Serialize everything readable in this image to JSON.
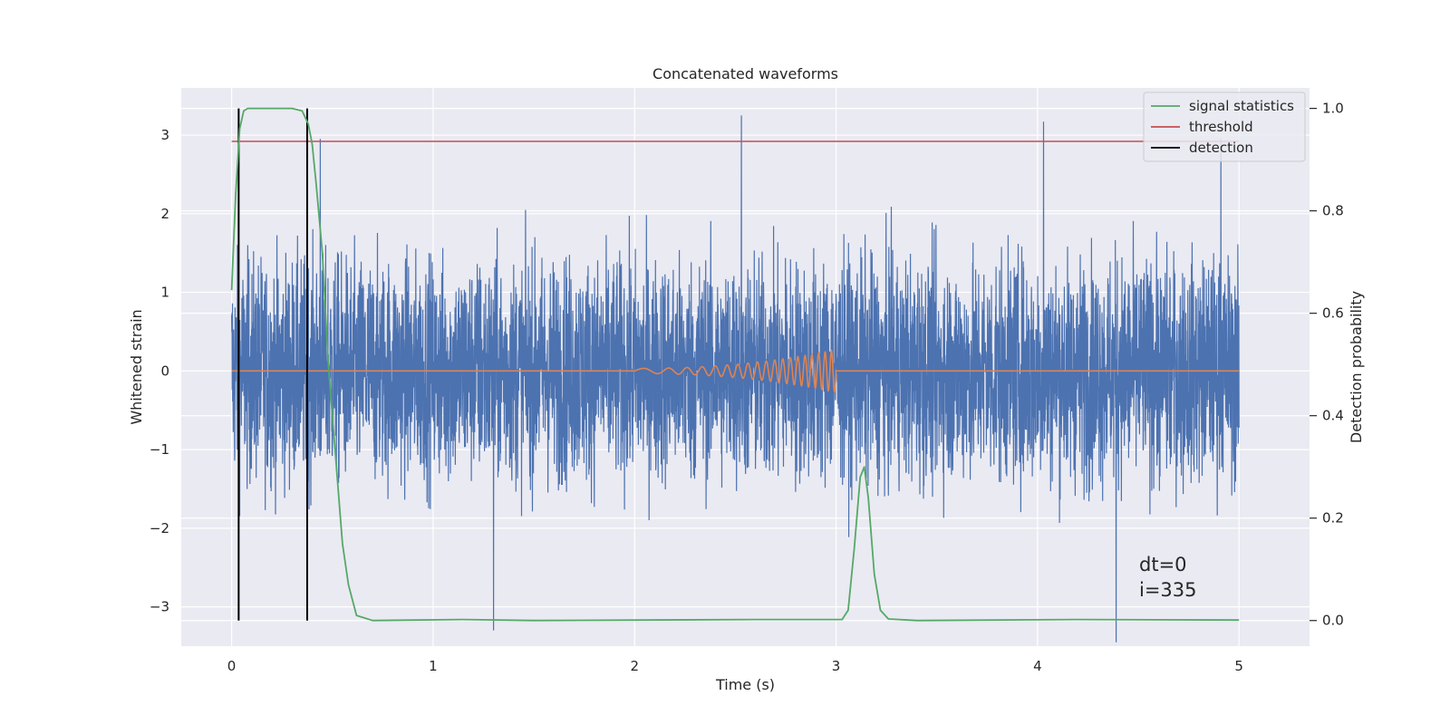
{
  "chart_data": {
    "type": "line",
    "title": "Concatenated waveforms",
    "xlabel": "Time (s)",
    "ylabel_left": "Whitened strain",
    "ylabel_right": "Detection probability",
    "xlim": [
      -0.25,
      5.35
    ],
    "ylim_left": [
      -3.5,
      3.6
    ],
    "ylim_right": [
      -0.05,
      1.04
    ],
    "x_ticks": [
      0,
      1,
      2,
      3,
      4,
      5
    ],
    "x_tick_labels": [
      "0",
      "1",
      "2",
      "3",
      "4",
      "5"
    ],
    "y_left_ticks": [
      -3,
      -2,
      -1,
      0,
      1,
      2,
      3
    ],
    "y_left_tick_labels": [
      "−3",
      "−2",
      "−1",
      "0",
      "1",
      "2",
      "3"
    ],
    "y_right_ticks": [
      0.0,
      0.2,
      0.4,
      0.6,
      0.8,
      1.0
    ],
    "y_right_tick_labels": [
      "0.0",
      "0.2",
      "0.4",
      "0.6",
      "0.8",
      "1.0"
    ],
    "grid": true,
    "legend_position": "top-right",
    "legend": [
      {
        "label": "signal statistics",
        "color": "#55a868"
      },
      {
        "label": "threshold",
        "color": "#c44e52"
      },
      {
        "label": "detection",
        "color": "#000000"
      }
    ],
    "series": [
      {
        "color": "#4c72b0",
        "axis": "left",
        "kind": "noise",
        "x_range": [
          0,
          5
        ],
        "typical_amplitude": 1.5,
        "extremes": [
          {
            "x": 0.44,
            "y": 2.95
          },
          {
            "x": 1.3,
            "y": -3.3
          },
          {
            "x": 2.53,
            "y": 3.25
          },
          {
            "x": 4.03,
            "y": 3.17
          },
          {
            "x": 4.39,
            "y": -3.45
          },
          {
            "x": 4.91,
            "y": 2.95
          }
        ]
      },
      {
        "color": "#dd8452",
        "axis": "left",
        "kind": "chirp",
        "x_range": [
          0,
          5
        ],
        "chirp_start": 2.0,
        "chirp_end": 3.0,
        "max_amplitude": 0.27
      },
      {
        "name": "signal statistics",
        "color": "#55a868",
        "axis": "right",
        "points": [
          [
            0.0,
            0.645
          ],
          [
            0.02,
            0.83
          ],
          [
            0.04,
            0.96
          ],
          [
            0.06,
            0.995
          ],
          [
            0.08,
            1.0
          ],
          [
            0.3,
            1.0
          ],
          [
            0.35,
            0.995
          ],
          [
            0.38,
            0.97
          ],
          [
            0.4,
            0.93
          ],
          [
            0.42,
            0.85
          ],
          [
            0.45,
            0.72
          ],
          [
            0.48,
            0.5
          ],
          [
            0.52,
            0.3
          ],
          [
            0.55,
            0.15
          ],
          [
            0.58,
            0.07
          ],
          [
            0.62,
            0.01
          ],
          [
            0.7,
            0.0
          ],
          [
            1.15,
            0.002
          ],
          [
            1.5,
            0.0
          ],
          [
            2.6,
            0.002
          ],
          [
            3.03,
            0.002
          ],
          [
            3.06,
            0.02
          ],
          [
            3.09,
            0.14
          ],
          [
            3.12,
            0.28
          ],
          [
            3.14,
            0.3
          ],
          [
            3.16,
            0.24
          ],
          [
            3.19,
            0.09
          ],
          [
            3.22,
            0.02
          ],
          [
            3.26,
            0.003
          ],
          [
            3.4,
            0.0
          ],
          [
            4.2,
            0.002
          ],
          [
            5.0,
            0.001
          ]
        ]
      },
      {
        "name": "threshold",
        "color": "#c44e52",
        "axis": "left",
        "points": [
          [
            0.0,
            2.92
          ],
          [
            5.0,
            2.92
          ]
        ]
      }
    ],
    "detections": [
      0.035,
      0.375
    ],
    "annotations": [
      "dt=0",
      "i=335"
    ]
  }
}
